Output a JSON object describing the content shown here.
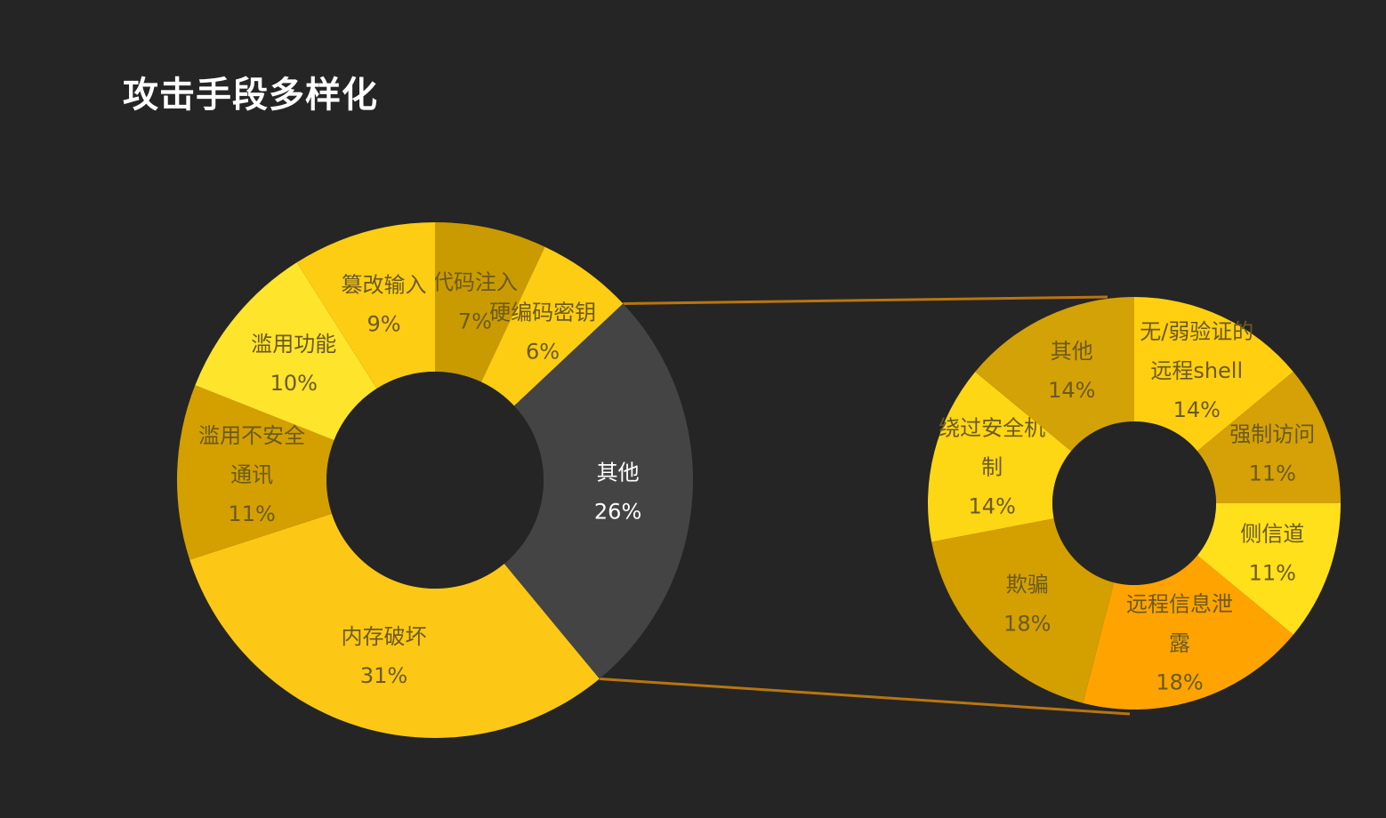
{
  "page": {
    "title": "攻击手段多样化"
  },
  "colors": {
    "background": "#252525",
    "hole": "#252525",
    "connector": "#b8750f",
    "label_dark": "#6b5a1e",
    "label_light": "#ffffff"
  },
  "chart_data": [
    {
      "type": "pie",
      "variant": "donut",
      "title": "",
      "slices": [
        {
          "name": "代码注入",
          "value": 7,
          "label": "7%",
          "color": "#c99b00"
        },
        {
          "name": "硬编码密钥",
          "value": 6,
          "label": "6%",
          "color": "#fccd12"
        },
        {
          "name": "其他",
          "value": 26,
          "label": "26%",
          "color": "#444444"
        },
        {
          "name": "内存破坏",
          "value": 31,
          "label": "31%",
          "color": "#fcc815"
        },
        {
          "name": "滥用不安全通讯",
          "value": 11,
          "label": "11%",
          "color": "#d3a000"
        },
        {
          "name": "滥用功能",
          "value": 10,
          "label": "10%",
          "color": "#ffe42c"
        },
        {
          "name": "篡改输入",
          "value": 9,
          "label": "9%",
          "color": "#fccd12"
        }
      ],
      "slice_text_lines": [
        [
          "代码注入"
        ],
        [
          "硬编码密钥"
        ],
        [
          "其他"
        ],
        [
          "内存破坏"
        ],
        [
          "滥用不安全",
          "通讯"
        ],
        [
          "滥用功能"
        ],
        [
          "篡改输入"
        ]
      ]
    },
    {
      "type": "pie",
      "variant": "donut",
      "title": "",
      "breakdown_of": "其他",
      "slices": [
        {
          "name": "无/弱验证的远程shell",
          "value": 14,
          "label": "14%",
          "color": "#ffcf10"
        },
        {
          "name": "强制访问",
          "value": 11,
          "label": "11%",
          "color": "#d5a106"
        },
        {
          "name": "侧信道",
          "value": 11,
          "label": "11%",
          "color": "#ffe01b"
        },
        {
          "name": "远程信息泄露",
          "value": 18,
          "label": "18%",
          "color": "#ffa300"
        },
        {
          "name": "欺骗",
          "value": 18,
          "label": "18%",
          "color": "#d3a000"
        },
        {
          "name": "绕过安全机制",
          "value": 14,
          "label": "14%",
          "color": "#fdd614"
        },
        {
          "name": "其他",
          "value": 14,
          "label": "14%",
          "color": "#d3a207"
        }
      ],
      "slice_text_lines": [
        [
          "无/弱验证的",
          "远程shell"
        ],
        [
          "强制访问"
        ],
        [
          "侧信道"
        ],
        [
          "远程信息泄",
          "露"
        ],
        [
          "欺骗"
        ],
        [
          "绕过安全机",
          "制"
        ],
        [
          "其他"
        ]
      ]
    }
  ]
}
